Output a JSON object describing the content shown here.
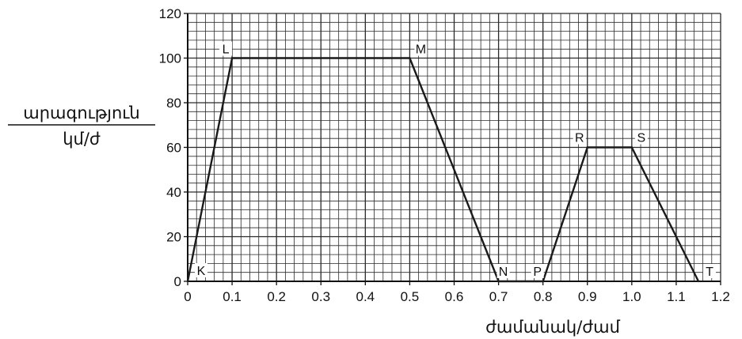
{
  "chart_data": {
    "type": "line",
    "xlabel": "ժամանակ/ժամ",
    "ylabel_top": "արագություն",
    "ylabel_bottom": "կմ/ժ",
    "xlim": [
      0,
      1.2
    ],
    "ylim": [
      0,
      120
    ],
    "x_ticks": [
      "0",
      "0.1",
      "0.2",
      "0.3",
      "0.4",
      "0.5",
      "0.6",
      "0.7",
      "0.8",
      "0.9",
      "1.0",
      "1.1",
      "1.2"
    ],
    "y_ticks": [
      "0",
      "20",
      "40",
      "60",
      "80",
      "100",
      "120"
    ],
    "grid": true,
    "series": [
      {
        "values": [
          {
            "x": 0,
            "y": 0
          },
          {
            "x": 0.1,
            "y": 100
          },
          {
            "x": 0.5,
            "y": 100
          },
          {
            "x": 0.7,
            "y": 0
          },
          {
            "x": 0.8,
            "y": 0
          },
          {
            "x": 0.9,
            "y": 60
          },
          {
            "x": 1.0,
            "y": 60
          },
          {
            "x": 1.15,
            "y": 0
          }
        ]
      }
    ],
    "annotations": [
      {
        "text": "K",
        "x": 0,
        "y": 0
      },
      {
        "text": "L",
        "x": 0.1,
        "y": 100
      },
      {
        "text": "M",
        "x": 0.5,
        "y": 100
      },
      {
        "text": "N",
        "x": 0.7,
        "y": 0
      },
      {
        "text": "P",
        "x": 0.8,
        "y": 0
      },
      {
        "text": "R",
        "x": 0.9,
        "y": 60
      },
      {
        "text": "S",
        "x": 1.0,
        "y": 60
      },
      {
        "text": "T",
        "x": 1.15,
        "y": 0
      }
    ],
    "colors": {
      "grid": "#2a2a2a",
      "line": "#1a1a1a",
      "text": "#111111"
    }
  }
}
